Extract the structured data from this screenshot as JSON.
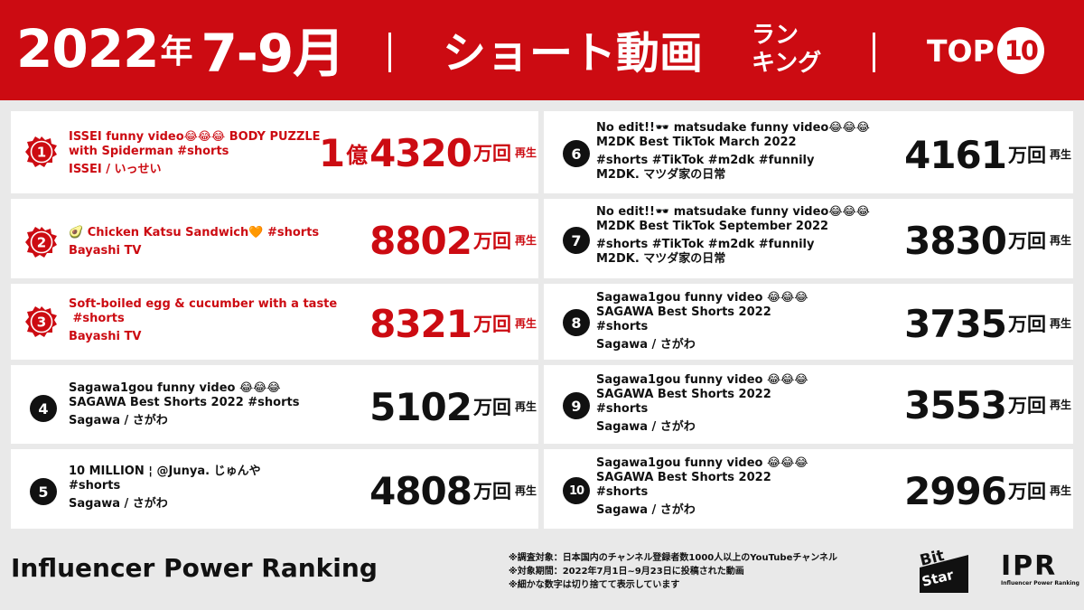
{
  "header": {
    "year": "2022",
    "year_suffix": "年",
    "months": "7-9月",
    "title": "ショート動画",
    "ranking_line1": "ラン",
    "ranking_line2": "キング",
    "top_label": "TOP",
    "top_number": "10"
  },
  "colors": {
    "brand_red": "#cc0b12",
    "background": "#e9e9e9",
    "card": "#ffffff",
    "text": "#111111"
  },
  "rankings": [
    {
      "rank": "1",
      "lines": [
        "ISSEI funny video😂😂😂 BODY PUZZLE",
        "with Spiderman #shorts"
      ],
      "channel": "ISSEI / いっせい",
      "count_oku": "1",
      "oku_label": "億",
      "count": "4320",
      "unit": "万回",
      "play_label": "再生"
    },
    {
      "rank": "2",
      "lines": [
        "🥑 Chicken Katsu Sandwich🧡 #shorts"
      ],
      "channel": "Bayashi TV",
      "count": "8802",
      "unit": "万回",
      "play_label": "再生"
    },
    {
      "rank": "3",
      "lines": [
        "Soft-boiled egg & cucumber with a taste",
        " #shorts"
      ],
      "channel": "Bayashi TV",
      "count": "8321",
      "unit": "万回",
      "play_label": "再生"
    },
    {
      "rank": "4",
      "lines": [
        "Sagawa1gou funny video 😂😂😂",
        "SAGAWA Best Shorts 2022 #shorts"
      ],
      "channel": "Sagawa / さがわ",
      "count": "5102",
      "unit": "万回",
      "play_label": "再生"
    },
    {
      "rank": "5",
      "lines": [
        "10 MILLION ¦ @Junya. じゅんや",
        "#shorts"
      ],
      "channel": "Sagawa / さがわ",
      "count": "4808",
      "unit": "万回",
      "play_label": "再生"
    },
    {
      "rank": "6",
      "lines": [
        "No edit!!🕶️ matsudake funny video😂😂😂",
        "M2DK Best TikTok March 2022",
        "#shorts #TikTok #m2dk #funnily"
      ],
      "channel": "M2DK. マツダ家の日常",
      "count": "4161",
      "unit": "万回",
      "play_label": "再生"
    },
    {
      "rank": "7",
      "lines": [
        "No edit!!🕶️ matsudake funny video😂😂😂",
        "M2DK Best TikTok September 2022",
        "#shorts #TikTok #m2dk #funnily"
      ],
      "channel": "M2DK. マツダ家の日常",
      "count": "3830",
      "unit": "万回",
      "play_label": "再生"
    },
    {
      "rank": "8",
      "lines": [
        "Sagawa1gou funny video 😂😂😂",
        "SAGAWA Best Shorts 2022",
        "#shorts"
      ],
      "channel": "Sagawa / さがわ",
      "count": "3735",
      "unit": "万回",
      "play_label": "再生"
    },
    {
      "rank": "9",
      "lines": [
        "Sagawa1gou funny video 😂😂😂",
        "SAGAWA Best Shorts 2022",
        "#shorts"
      ],
      "channel": "Sagawa / さがわ",
      "count": "3553",
      "unit": "万回",
      "play_label": "再生"
    },
    {
      "rank": "10",
      "lines": [
        "Sagawa1gou funny video 😂😂😂",
        "SAGAWA Best Shorts 2022",
        "#shorts"
      ],
      "channel": "Sagawa / さがわ",
      "count": "2996",
      "unit": "万回",
      "play_label": "再生"
    }
  ],
  "footer": {
    "title": "Influencer Power Ranking",
    "notes": [
      "※調査対象：日本国内のチャンネル登録者数1000人以上のYouTubeチャンネル",
      "※対象期間：2022年7月1日~9月23日に投稿された動画",
      "※細かな数字は切り捨てて表示しています"
    ],
    "bitstar_line1": "Bit",
    "bitstar_line2": "Star",
    "ipr_big": "IPR",
    "ipr_small": "Influencer Power Ranking"
  }
}
